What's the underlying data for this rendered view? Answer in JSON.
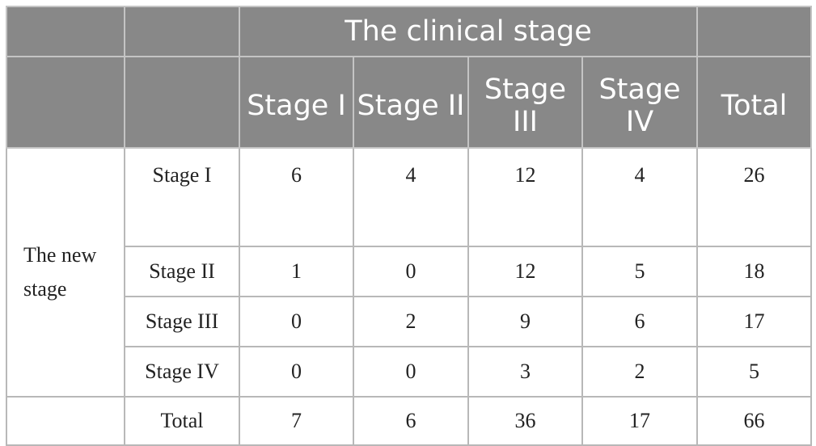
{
  "table": {
    "group_header": "The clinical stage",
    "columns": [
      "Stage I",
      "Stage II",
      "Stage III",
      "Stage IV",
      "Total"
    ],
    "row_group_label": "The new stage",
    "rows": [
      {
        "label": "Stage I",
        "values": [
          "6",
          "4",
          "12",
          "4",
          "26"
        ]
      },
      {
        "label": "Stage II",
        "values": [
          "1",
          "0",
          "12",
          "5",
          "18"
        ]
      },
      {
        "label": "Stage III",
        "values": [
          "0",
          "2",
          "9",
          "6",
          "17"
        ]
      },
      {
        "label": "Stage IV",
        "values": [
          "0",
          "0",
          "3",
          "2",
          "5"
        ]
      },
      {
        "label": "Total",
        "values": [
          "7",
          "6",
          "36",
          "17",
          "66"
        ]
      }
    ]
  },
  "colors": {
    "header_bg": "#888888",
    "header_text": "#ffffff",
    "grid_line": "#b8b8b8",
    "body_text": "#222222"
  }
}
